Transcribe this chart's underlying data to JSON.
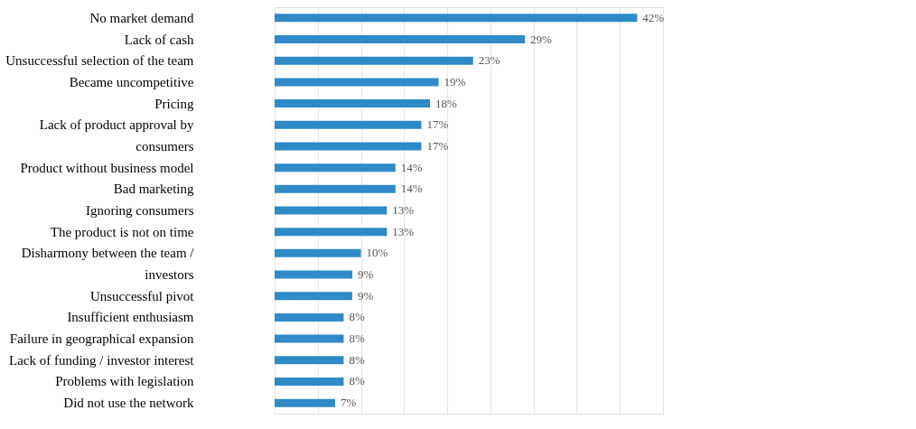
{
  "chart_data": {
    "type": "bar",
    "orientation": "horizontal",
    "categories": [
      "No market demand",
      "Lack of cash",
      "Unsuccessful selection of the team",
      "Became uncompetitive",
      "Pricing",
      "Lack of product approval by",
      "consumers",
      "Product without business model",
      "Bad marketing",
      "Ignoring consumers",
      "The product is not on time",
      "Disharmony between the team /",
      "investors",
      "Unsuccessful pivot",
      "Insufficient enthusiasm",
      "Failure in geographical expansion",
      "Lack of funding / investor interest",
      "Problems with legislation",
      "Did not use the network"
    ],
    "values": [
      42,
      29,
      23,
      19,
      18,
      17,
      17,
      14,
      14,
      13,
      13,
      10,
      9,
      9,
      8,
      8,
      8,
      8,
      7
    ],
    "value_labels": [
      "42%",
      "29%",
      "23%",
      "19%",
      "18%",
      "17%",
      "17%",
      "14%",
      "14%",
      "13%",
      "13%",
      "10%",
      "9%",
      "9%",
      "8%",
      "8%",
      "8%",
      "8%",
      "7%"
    ],
    "color": "#2e8bc7",
    "xlim": [
      0,
      45
    ],
    "xticks": [
      {
        "value": 0,
        "label": null
      },
      {
        "value": 5,
        "label": null
      },
      {
        "value": 10,
        "label": null
      },
      {
        "value": 15,
        "label": null
      },
      {
        "value": 20,
        "label": null
      },
      {
        "value": 25,
        "label": null
      },
      {
        "value": 30,
        "label": null
      },
      {
        "value": 35,
        "label": null
      },
      {
        "value": 40,
        "label": null
      },
      {
        "value": 45,
        "label": null
      }
    ],
    "grid": "x",
    "tick_labels": "y"
  }
}
